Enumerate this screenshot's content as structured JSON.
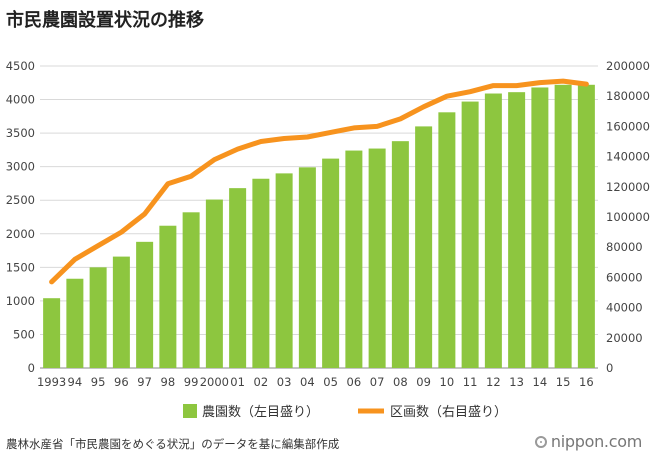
{
  "title": "市民農園設置状況の推移",
  "source": "農林水産省「市民農園をめぐる状況」のデータを基に編集部作成",
  "brand": "nippon.com",
  "colors": {
    "bar": "#8dc63f",
    "line": "#f7931e",
    "grid": "#d9d9d9",
    "axis": "#888888"
  },
  "chart_data": {
    "type": "bar+line",
    "categories": [
      "1993",
      "94",
      "95",
      "96",
      "97",
      "98",
      "99",
      "2000",
      "01",
      "02",
      "03",
      "04",
      "05",
      "06",
      "07",
      "08",
      "09",
      "10",
      "11",
      "12",
      "13",
      "14",
      "15",
      "16"
    ],
    "series": [
      {
        "name": "農園数（左目盛り）",
        "type": "bar",
        "axis": "left",
        "values": [
          1040,
          1330,
          1500,
          1660,
          1880,
          2120,
          2320,
          2510,
          2680,
          2820,
          2900,
          2990,
          3120,
          3240,
          3270,
          3380,
          3600,
          3810,
          3970,
          4090,
          4110,
          4180,
          4220,
          4220
        ]
      },
      {
        "name": "区画数（右目盛り）",
        "type": "line",
        "axis": "right",
        "values": [
          57000,
          72000,
          81000,
          90000,
          102000,
          122000,
          127000,
          138000,
          145000,
          150000,
          152000,
          153000,
          156000,
          159000,
          160000,
          165000,
          173000,
          180000,
          183000,
          187000,
          187000,
          189000,
          190000,
          188000
        ]
      }
    ],
    "y_left": {
      "min": 0,
      "max": 4500,
      "ticks": [
        "0",
        "500",
        "1000",
        "1500",
        "2000",
        "2500",
        "3000",
        "3500",
        "4000",
        "4500"
      ]
    },
    "y_right": {
      "min": 0,
      "max": 200000,
      "ticks": [
        "0",
        "20000",
        "40000",
        "60000",
        "80000",
        "100000",
        "120000",
        "140000",
        "160000",
        "180000",
        "200000"
      ]
    },
    "grid": true,
    "legend_placement": "bottom"
  }
}
